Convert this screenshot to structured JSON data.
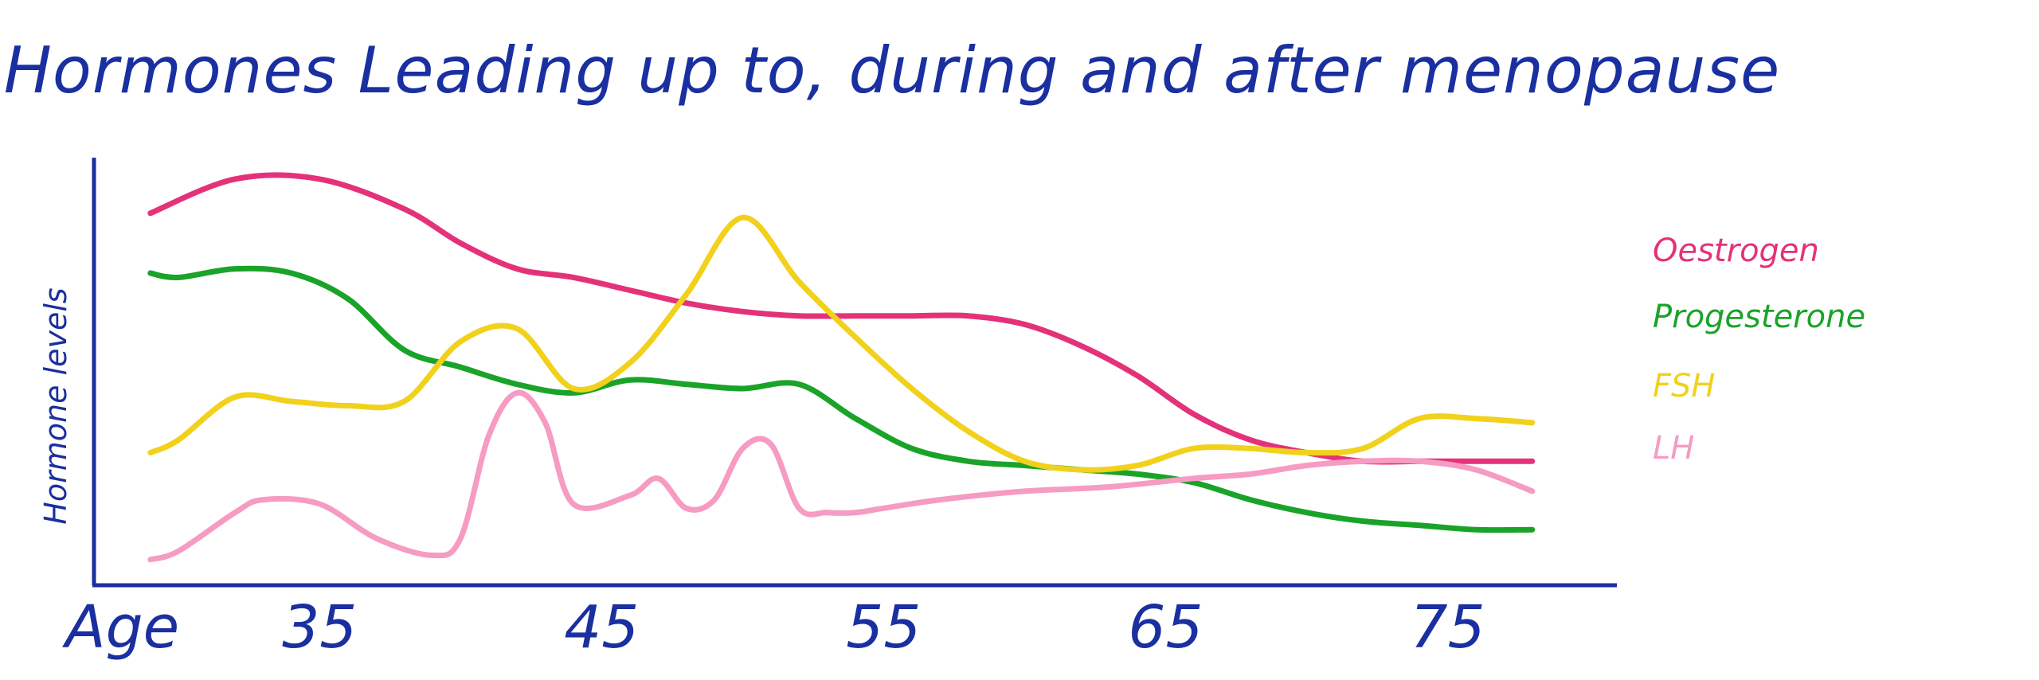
{
  "chart_data": {
    "type": "line",
    "title": "Hormones Leading up to, during and after menopause",
    "xlabel": "Age",
    "ylabel": "Hormone levels",
    "x_ticks": [
      "35",
      "45",
      "55",
      "65",
      "75"
    ],
    "xlim": [
      27,
      81
    ],
    "ylim": [
      0,
      100
    ],
    "grid": false,
    "legend_position": "right",
    "series": [
      {
        "name": "Oestrogen",
        "color": "#e4327a",
        "x": [
          29,
          32,
          35,
          38,
          40,
          42,
          44,
          46,
          48,
          50,
          52,
          54,
          56,
          58,
          60,
          62,
          64,
          66,
          68,
          70,
          72,
          74,
          76,
          78
        ],
        "y": [
          87,
          95,
          95,
          88,
          80,
          74,
          72,
          69,
          66,
          64,
          63,
          63,
          63,
          63,
          61,
          56,
          49,
          40,
          34,
          31,
          29,
          29,
          29,
          29
        ]
      },
      {
        "name": "Progesterone",
        "color": "#1aa329",
        "x": [
          29,
          30,
          32,
          34,
          36,
          38,
          40,
          42,
          44,
          46,
          48,
          50,
          52,
          54,
          56,
          58,
          60,
          62,
          64,
          66,
          68,
          70,
          72,
          74,
          76,
          78
        ],
        "y": [
          73,
          72,
          74,
          73,
          67,
          55,
          51,
          47,
          45,
          48,
          47,
          46,
          47,
          39,
          32,
          29,
          28,
          27,
          26,
          24,
          20,
          17,
          15,
          14,
          13,
          13
        ]
      },
      {
        "name": "FSH",
        "color": "#f1d11c",
        "x": [
          29,
          30,
          32,
          34,
          36,
          38,
          40,
          42,
          44,
          46,
          48,
          50,
          52,
          54,
          56,
          58,
          60,
          62,
          64,
          66,
          68,
          70,
          72,
          74,
          76,
          78
        ],
        "y": [
          31,
          34,
          44,
          43,
          42,
          43,
          57,
          60,
          46,
          52,
          68,
          86,
          71,
          58,
          46,
          36,
          29,
          27,
          28,
          32,
          32,
          31,
          32,
          39,
          39,
          38
        ]
      },
      {
        "name": "LH",
        "color": "#f69bc3",
        "x": [
          29,
          30,
          32,
          33,
          35,
          37,
          39,
          40,
          41,
          42,
          43,
          44,
          46,
          47,
          48,
          49,
          50,
          51,
          52,
          53,
          54,
          55,
          57,
          60,
          63,
          66,
          68,
          70,
          72,
          74,
          76,
          78
        ],
        "y": [
          6,
          8,
          17,
          20,
          19,
          11,
          7,
          11,
          35,
          45,
          38,
          19,
          21,
          25,
          18,
          20,
          32,
          33,
          18,
          17,
          17,
          18,
          20,
          22,
          23,
          25,
          26,
          28,
          29,
          29,
          27,
          22
        ]
      }
    ]
  }
}
